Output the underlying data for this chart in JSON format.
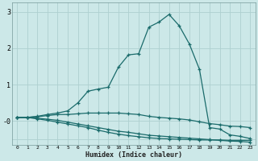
{
  "xlabel": "Humidex (Indice chaleur)",
  "bg_color": "#cce8e8",
  "grid_color": "#aed0d0",
  "line_color": "#1a6b6b",
  "x_ticks": [
    0,
    1,
    2,
    3,
    4,
    5,
    6,
    7,
    8,
    9,
    10,
    11,
    12,
    13,
    14,
    15,
    16,
    17,
    18,
    19,
    20,
    21,
    22,
    23
  ],
  "ylim": [
    -0.65,
    3.25
  ],
  "xlim": [
    -0.5,
    23.5
  ],
  "curve1": [
    0.1,
    0.1,
    0.13,
    0.18,
    0.22,
    0.28,
    0.5,
    0.82,
    0.88,
    0.93,
    1.48,
    1.82,
    1.85,
    2.58,
    2.72,
    2.93,
    2.62,
    2.12,
    1.42,
    -0.18,
    -0.22,
    -0.38,
    -0.42,
    -0.48
  ],
  "curve2": [
    0.1,
    0.1,
    0.12,
    0.15,
    0.18,
    0.18,
    0.2,
    0.22,
    0.22,
    0.22,
    0.22,
    0.2,
    0.18,
    0.13,
    0.1,
    0.08,
    0.06,
    0.03,
    -0.02,
    -0.07,
    -0.1,
    -0.14,
    -0.15,
    -0.18
  ],
  "curve3": [
    0.1,
    0.1,
    0.08,
    0.05,
    0.02,
    -0.03,
    -0.08,
    -0.13,
    -0.18,
    -0.23,
    -0.28,
    -0.31,
    -0.35,
    -0.39,
    -0.41,
    -0.43,
    -0.45,
    -0.47,
    -0.49,
    -0.51,
    -0.53,
    -0.55,
    -0.56,
    -0.58
  ],
  "curve4": [
    0.1,
    0.1,
    0.06,
    0.02,
    -0.03,
    -0.08,
    -0.13,
    -0.18,
    -0.25,
    -0.31,
    -0.36,
    -0.4,
    -0.43,
    -0.46,
    -0.48,
    -0.49,
    -0.5,
    -0.51,
    -0.52,
    -0.52,
    -0.52,
    -0.53,
    -0.53,
    -0.53
  ]
}
